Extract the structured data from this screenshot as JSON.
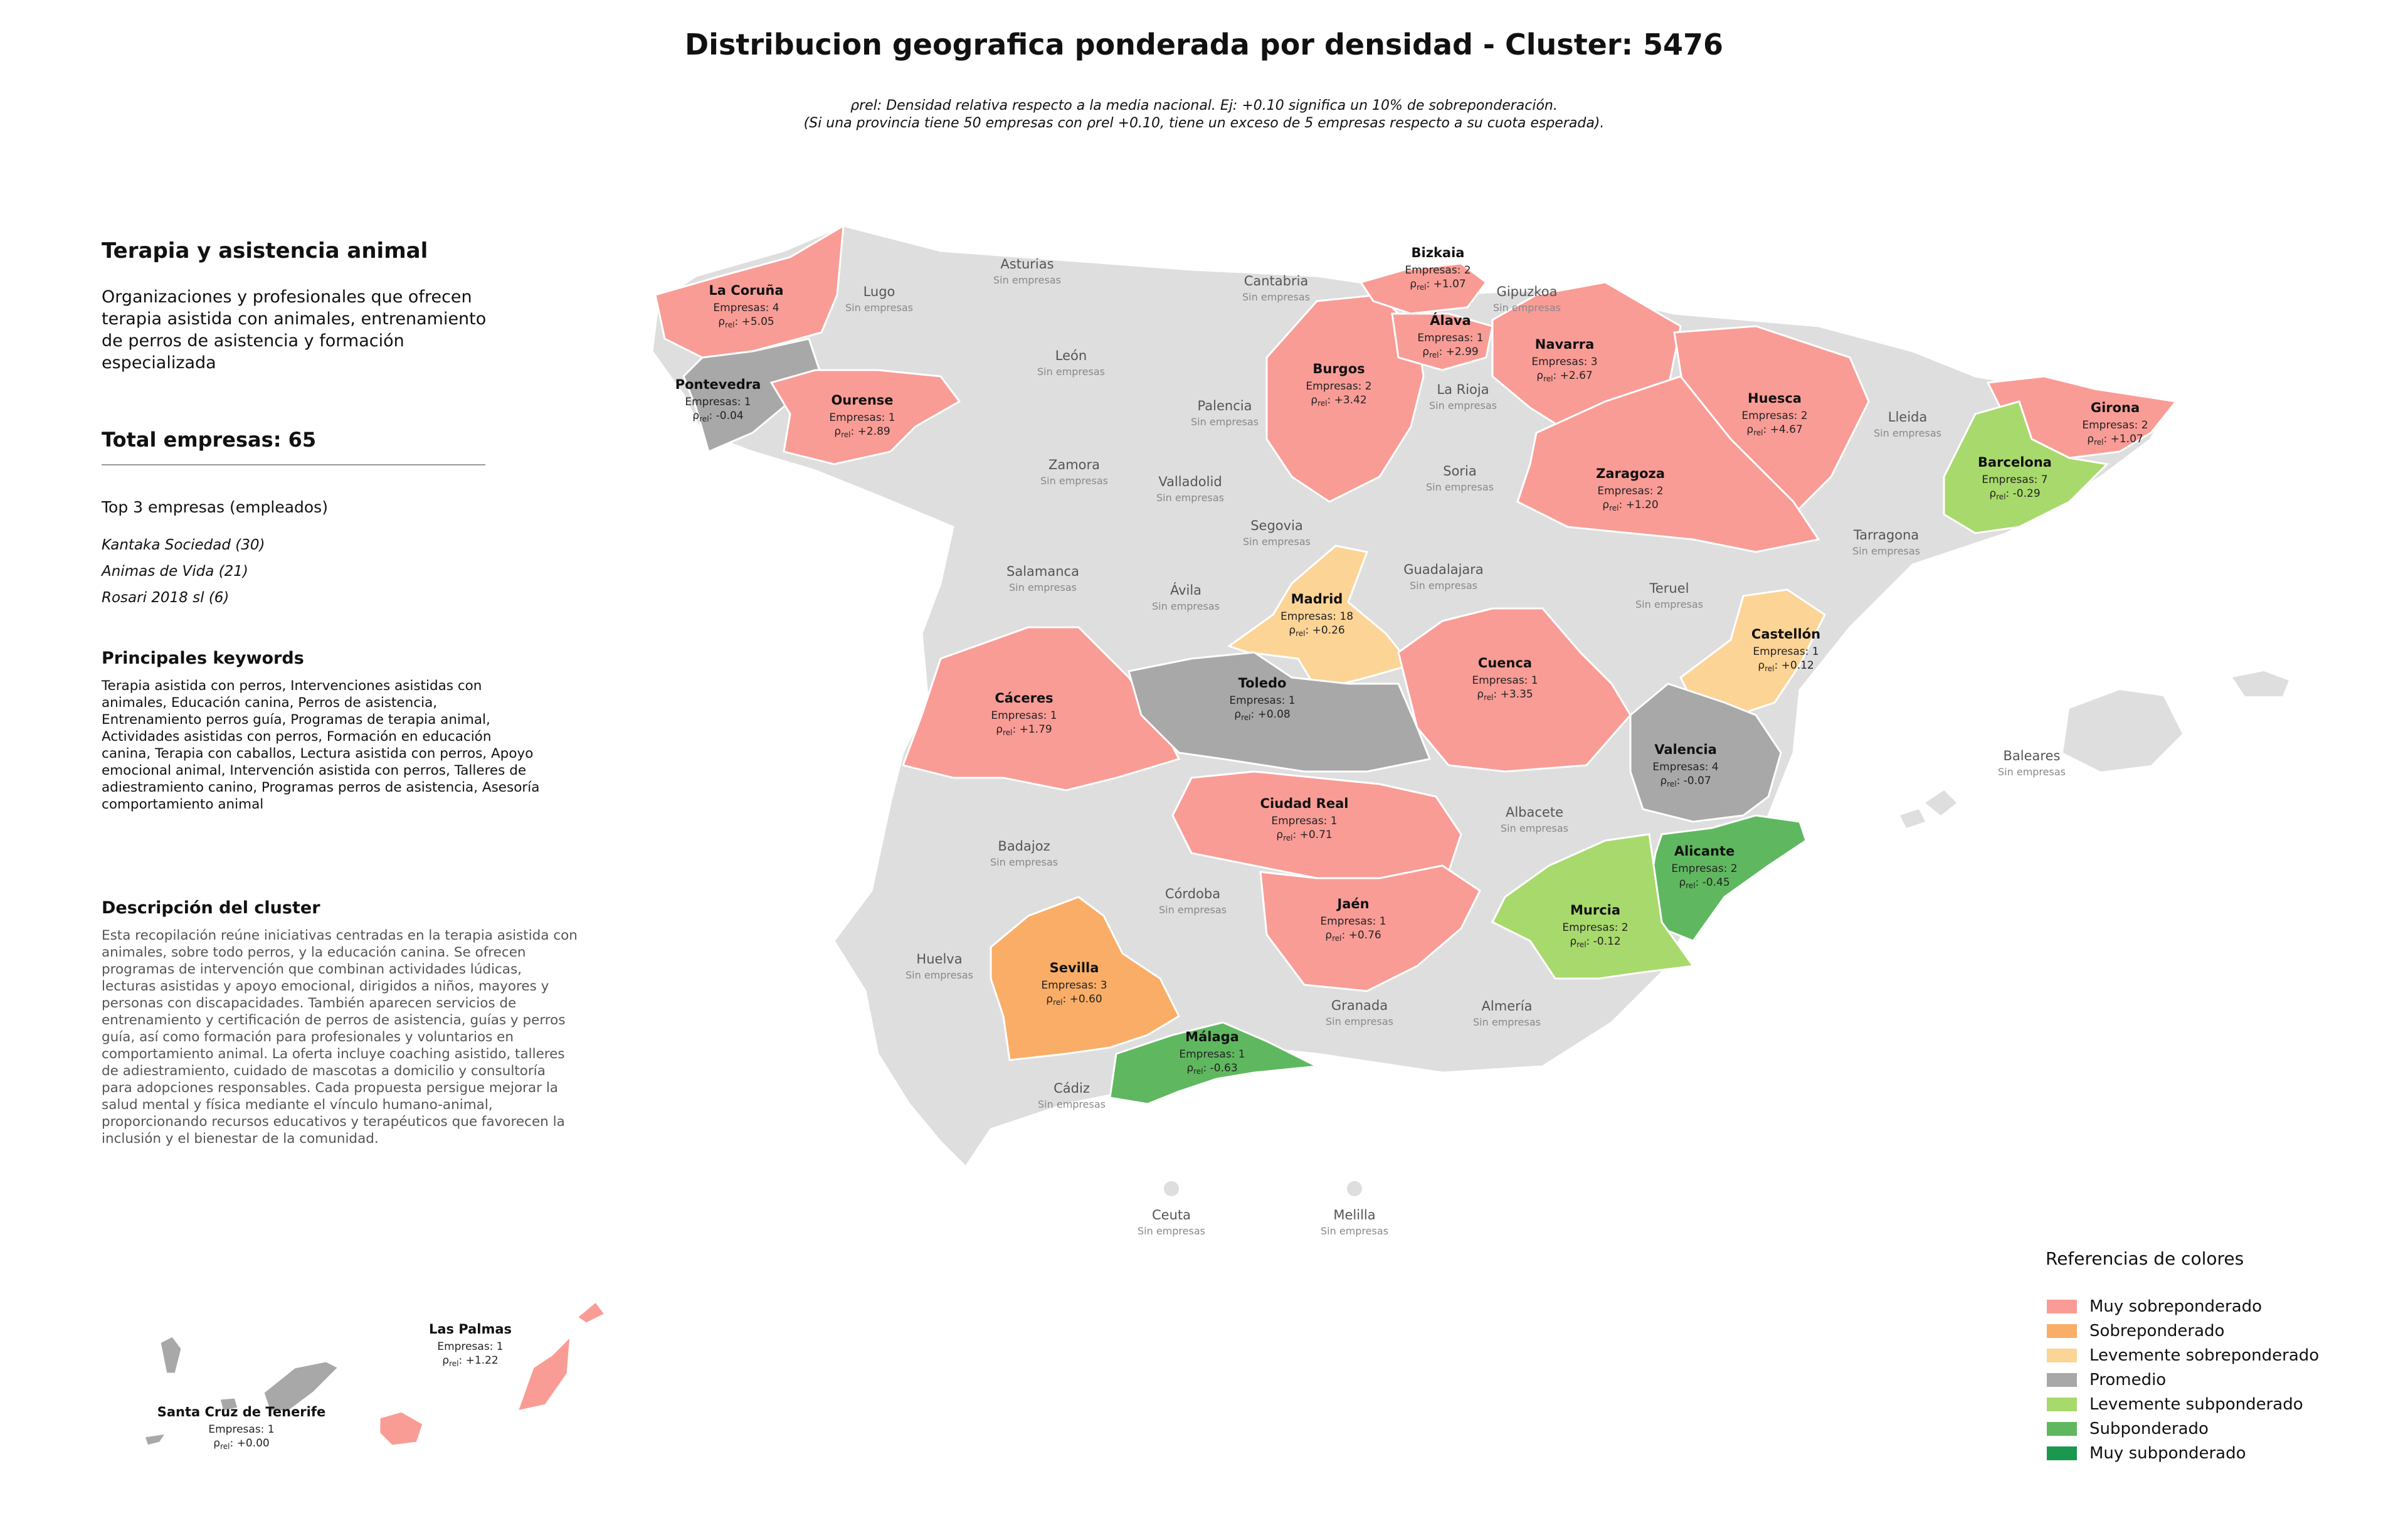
{
  "title": "Distribucion geografica ponderada por densidad - Cluster: 5476",
  "notes": {
    "line1": "ρrel: Densidad relativa respecto a la media nacional. Ej: +0.10 significa un 10% de sobreponderación.",
    "line2": "(Si una provincia tiene 50 empresas con ρrel +0.10, tiene un exceso de 5 empresas respecto a su cuota esperada)."
  },
  "panel": {
    "cluster_name": "Terapia y asistencia animal",
    "cluster_description": "Organizaciones y profesionales que ofrecen terapia asistida con animales, entrenamiento de perros de asistencia y formación especializada",
    "total": "Total empresas: 65",
    "top3_title": "Top 3 empresas (empleados)",
    "top3": [
      "Kantaka Sociedad (30)",
      "Animas de Vida (21)",
      "Rosari 2018 sl (6)"
    ],
    "keywords_title": "Principales keywords",
    "keywords": "Terapia asistida con perros, Intervenciones asistidas con animales, Educación canina, Perros de asistencia, Entrenamiento perros guía, Programas de terapia animal, Actividades asistidas con perros, Formación en educación canina, Terapia con caballos, Lectura asistida con perros, Apoyo emocional animal, Intervención asistida con perros, Talleres de adiestramiento canino, Programas perros de asistencia, Asesoría comportamiento animal",
    "desc_title": "Descripción del cluster",
    "desc": "Esta recopilación reúne iniciativas centradas en la terapia asistida con animales, sobre todo perros, y la educación canina. Se ofrecen programas de intervención que combinan actividades lúdicas, lecturas asistidas y apoyo emocional, dirigidos a niños, mayores y personas con discapacidades. También aparecen servicios de entrenamiento y certificación de perros de asistencia, guías y perros guía, así como formación para profesionales y voluntarios en comportamiento animal. La oferta incluye coaching asistido, talleres de adiestramiento, cuidado de mascotas a domicilio y consultoría para adopciones responsables. Cada propuesta persigue mejorar la salud mental y física mediante el vínculo humano-animal, proporcionando recursos educativos y terapéuticos que favorecen la inclusión y el bienestar de la comunidad."
  },
  "legend": {
    "title": "Referencias de colores",
    "items": [
      {
        "label": "Muy sobreponderado",
        "color": "#f99c96"
      },
      {
        "label": "Sobreponderado",
        "color": "#f9ad66"
      },
      {
        "label": "Levemente sobreponderado",
        "color": "#fcd496"
      },
      {
        "label": "Promedio",
        "color": "#a8a8a8"
      },
      {
        "label": "Levemente subponderado",
        "color": "#a8d96c"
      },
      {
        "label": "Subponderado",
        "color": "#5fb85f"
      },
      {
        "label": "Muy subponderado",
        "color": "#1a9850"
      }
    ]
  },
  "no_data_text": "Sin empresas",
  "provinces": [
    {
      "name": "La Coruña",
      "empresas": "Empresas: 4",
      "rho": "+5.05",
      "color": "#f99c96"
    },
    {
      "name": "Pontevedra",
      "empresas": "Empresas: 1",
      "rho": "-0.04",
      "color": "#a8a8a8"
    },
    {
      "name": "Ourense",
      "empresas": "Empresas: 1",
      "rho": "+2.89",
      "color": "#f99c96"
    },
    {
      "name": "Burgos",
      "empresas": "Empresas: 2",
      "rho": "+3.42",
      "color": "#f99c96"
    },
    {
      "name": "Bizkaia",
      "empresas": "Empresas: 2",
      "rho": "+1.07",
      "color": "#f99c96"
    },
    {
      "name": "Álava",
      "empresas": "Empresas: 1",
      "rho": "+2.99",
      "color": "#f99c96"
    },
    {
      "name": "Navarra",
      "empresas": "Empresas: 3",
      "rho": "+2.67",
      "color": "#f99c96"
    },
    {
      "name": "Huesca",
      "empresas": "Empresas: 2",
      "rho": "+4.67",
      "color": "#f99c96"
    },
    {
      "name": "Zaragoza",
      "empresas": "Empresas: 2",
      "rho": "+1.20",
      "color": "#f99c96"
    },
    {
      "name": "Girona",
      "empresas": "Empresas: 2",
      "rho": "+1.07",
      "color": "#f99c96"
    },
    {
      "name": "Barcelona",
      "empresas": "Empresas: 7",
      "rho": "-0.29",
      "color": "#a8d96c"
    },
    {
      "name": "Madrid",
      "empresas": "Empresas: 18",
      "rho": "+0.26",
      "color": "#fcd496"
    },
    {
      "name": "Castellón",
      "empresas": "Empresas: 1",
      "rho": "+0.12",
      "color": "#fcd496"
    },
    {
      "name": "Cáceres",
      "empresas": "Empresas: 1",
      "rho": "+1.79",
      "color": "#f99c96"
    },
    {
      "name": "Toledo",
      "empresas": "Empresas: 1",
      "rho": "+0.08",
      "color": "#a8a8a8"
    },
    {
      "name": "Cuenca",
      "empresas": "Empresas: 1",
      "rho": "+3.35",
      "color": "#f99c96"
    },
    {
      "name": "Valencia",
      "empresas": "Empresas: 4",
      "rho": "-0.07",
      "color": "#a8a8a8"
    },
    {
      "name": "Ciudad Real",
      "empresas": "Empresas: 1",
      "rho": "+0.71",
      "color": "#f99c96"
    },
    {
      "name": "Alicante",
      "empresas": "Empresas: 2",
      "rho": "-0.45",
      "color": "#5fb85f"
    },
    {
      "name": "Jaén",
      "empresas": "Empresas: 1",
      "rho": "+0.76",
      "color": "#f99c96"
    },
    {
      "name": "Murcia",
      "empresas": "Empresas: 2",
      "rho": "-0.12",
      "color": "#a8d96c"
    },
    {
      "name": "Sevilla",
      "empresas": "Empresas: 3",
      "rho": "+0.60",
      "color": "#f9ad66"
    },
    {
      "name": "Málaga",
      "empresas": "Empresas: 1",
      "rho": "-0.63",
      "color": "#5fb85f"
    },
    {
      "name": "Las Palmas",
      "empresas": "Empresas: 1",
      "rho": "+1.22",
      "color": "#f99c96"
    },
    {
      "name": "Santa Cruz de Tenerife",
      "empresas": "Empresas: 1",
      "rho": "+0.00",
      "color": "#a8a8a8"
    }
  ],
  "empty_provinces": [
    "Asturias",
    "Lugo",
    "Cantabria",
    "Gipuzkoa",
    "León",
    "Palencia",
    "La Rioja",
    "Lleida",
    "Zamora",
    "Valladolid",
    "Soria",
    "Segovia",
    "Tarragona",
    "Salamanca",
    "Ávila",
    "Guadalajara",
    "Teruel",
    "Baleares",
    "Badajoz",
    "Albacete",
    "Córdoba",
    "Huelva",
    "Granada",
    "Almería",
    "Cádiz",
    "Ceuta",
    "Melilla"
  ]
}
